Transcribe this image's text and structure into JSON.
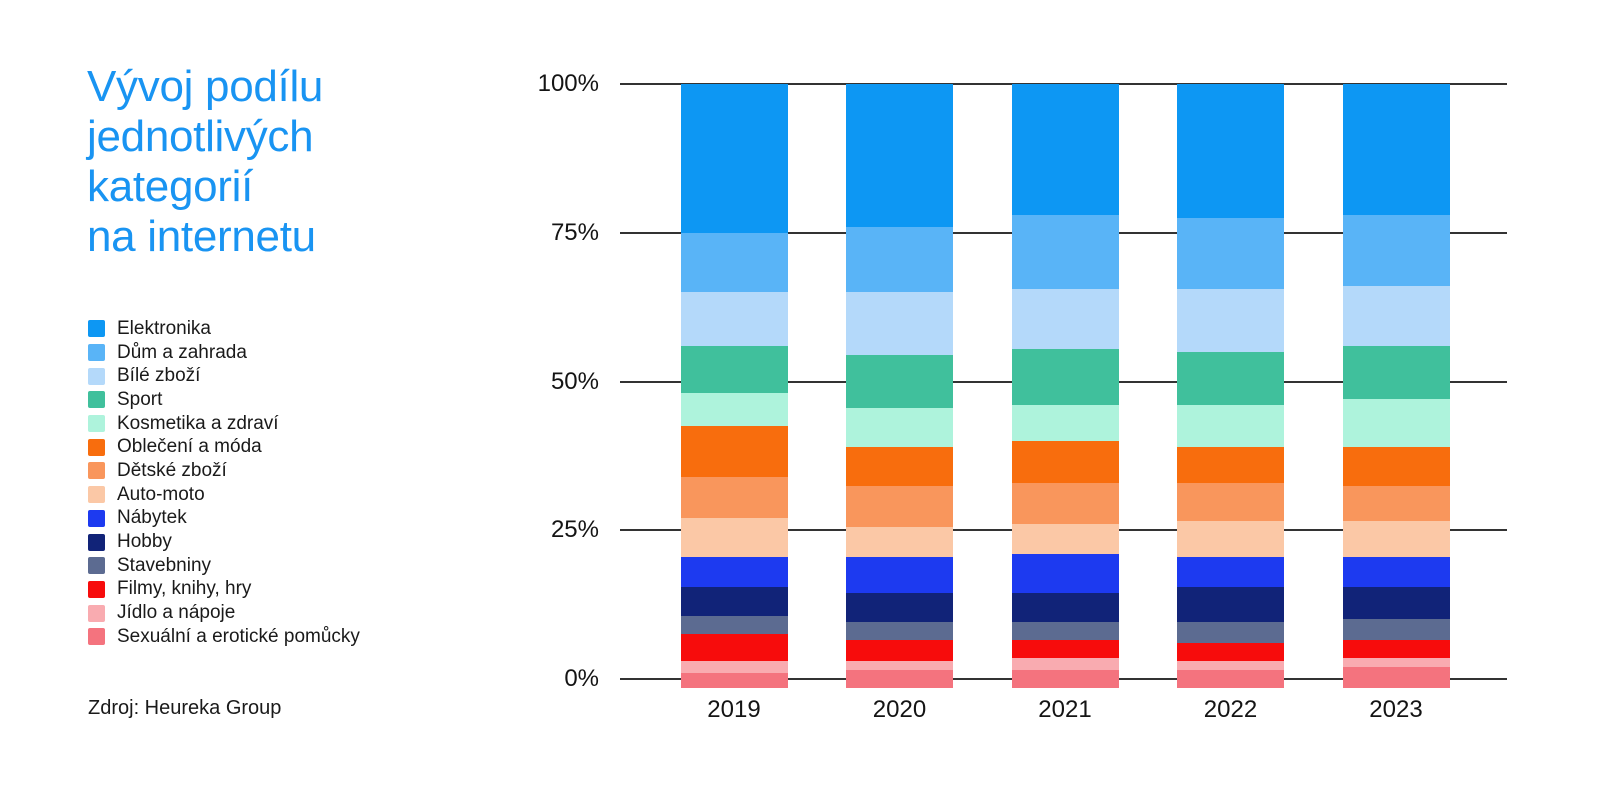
{
  "title": "Vývoj podílu\njednotlivých\nkategorií\nna internetu",
  "source": "Zdroj: Heureka Group",
  "colors": {
    "title_blue": "#1994f2",
    "text_dark": "#1a1a1a",
    "gridline": "#333333",
    "background": "#ffffff"
  },
  "chart_data": {
    "type": "bar",
    "variant": "stacked-100-percent",
    "title": "Vývoj podílu jednotlivých kategorií na internetu",
    "categories": [
      "2019",
      "2020",
      "2021",
      "2022",
      "2023"
    ],
    "series": [
      {
        "name": "Elektronika",
        "color": "#0d97f3",
        "values": [
          25,
          24,
          22,
          22.5,
          22
        ]
      },
      {
        "name": "Dům a zahrada",
        "color": "#59b4f7",
        "values": [
          10,
          11,
          12.5,
          12,
          12
        ]
      },
      {
        "name": "Bílé zboží",
        "color": "#b4d9fa",
        "values": [
          9,
          10.5,
          10,
          10.5,
          10
        ]
      },
      {
        "name": "Sport",
        "color": "#40c09c",
        "values": [
          8,
          9,
          9.5,
          9,
          9
        ]
      },
      {
        "name": "Kosmetika a zdraví",
        "color": "#aef3dc",
        "values": [
          5.5,
          6.5,
          6,
          7,
          8
        ]
      },
      {
        "name": "Oblečení a móda",
        "color": "#f86d0d",
        "values": [
          8.5,
          6.5,
          7,
          6,
          6.5
        ]
      },
      {
        "name": "Dětské zboží",
        "color": "#f9965c",
        "values": [
          7,
          7,
          7,
          6.5,
          6
        ]
      },
      {
        "name": "Auto-moto",
        "color": "#fbc8a6",
        "values": [
          6.5,
          5,
          5,
          6,
          6
        ]
      },
      {
        "name": "Nábytek",
        "color": "#1d3af0",
        "values": [
          5,
          6,
          6.5,
          5,
          5
        ]
      },
      {
        "name": "Hobby",
        "color": "#112378",
        "values": [
          5,
          5,
          5,
          6,
          5.5
        ]
      },
      {
        "name": "Stavebniny",
        "color": "#5c6b91",
        "values": [
          3,
          3,
          3,
          3.5,
          3.5
        ]
      },
      {
        "name": "Filmy, knihy, hry",
        "color": "#f70c0c",
        "values": [
          4.5,
          3.5,
          3,
          3,
          3
        ]
      },
      {
        "name": "Jídlo a nápoje",
        "color": "#f9abb0",
        "values": [
          2,
          1.5,
          2,
          1.5,
          1.5
        ]
      },
      {
        "name": "Sexuální a erotické pomůcky",
        "color": "#f4737e",
        "values": [
          1,
          1.5,
          1.5,
          1.5,
          2
        ]
      }
    ],
    "y_ticks": [
      "0%",
      "25%",
      "50%",
      "75%",
      "100%"
    ],
    "ylim": [
      0,
      100
    ],
    "grid": true,
    "legend_position": "left",
    "x_axis_label": "",
    "y_axis_label": ""
  }
}
